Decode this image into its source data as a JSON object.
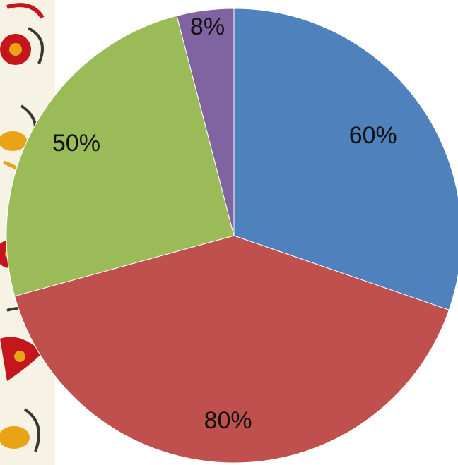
{
  "chart_data": {
    "type": "pie",
    "categories": [
      "",
      "",
      "",
      ""
    ],
    "values": [
      60,
      80,
      50,
      8
    ],
    "labels": [
      "60%",
      "80%",
      "50%",
      "8%"
    ],
    "colors": [
      "#4F81BD",
      "#C0504D",
      "#9BBB59",
      "#8064A2"
    ],
    "start_angle": "top",
    "direction": "clockwise",
    "title": "",
    "legend": "none"
  },
  "decoration": {
    "left_border": "floral-ornament",
    "border_colors": [
      "#c4161c",
      "#e8a317",
      "#3a3a2a",
      "#f4f1e6"
    ]
  }
}
